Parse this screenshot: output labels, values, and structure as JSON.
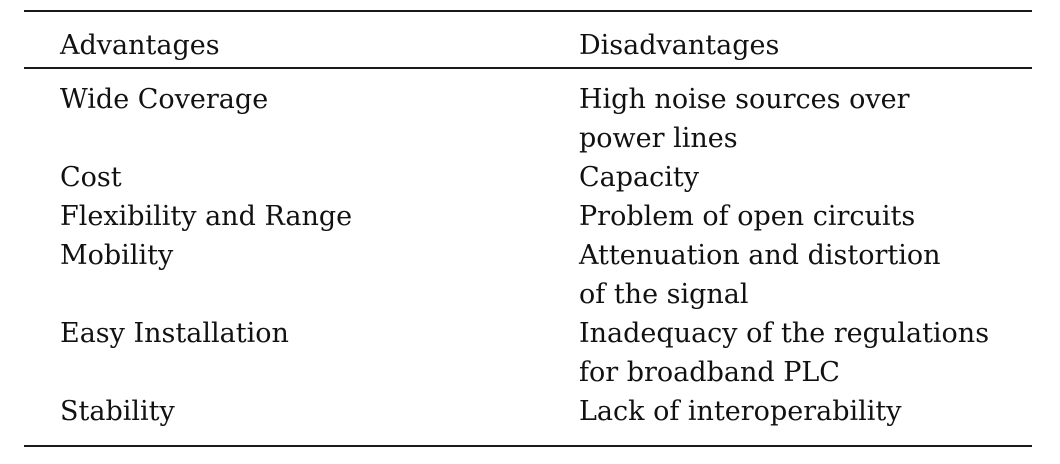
{
  "table": {
    "headers": {
      "advantages": "Advantages",
      "disadvantages": "Disadvantages"
    },
    "rows": [
      {
        "advantage": "Wide Coverage",
        "disadvantage": [
          "High noise sources over",
          "power lines"
        ]
      },
      {
        "advantage": "Cost",
        "disadvantage": [
          "Capacity"
        ]
      },
      {
        "advantage": "Flexibility and Range",
        "disadvantage": [
          "Problem of open circuits"
        ]
      },
      {
        "advantage": "Mobility",
        "disadvantage": [
          "Attenuation and distortion",
          "of the signal"
        ]
      },
      {
        "advantage": "Easy Installation",
        "disadvantage": [
          "Inadequacy of the regulations",
          "for broadband PLC"
        ]
      },
      {
        "advantage": "Stability",
        "disadvantage": [
          "Lack of interoperability"
        ]
      }
    ]
  }
}
